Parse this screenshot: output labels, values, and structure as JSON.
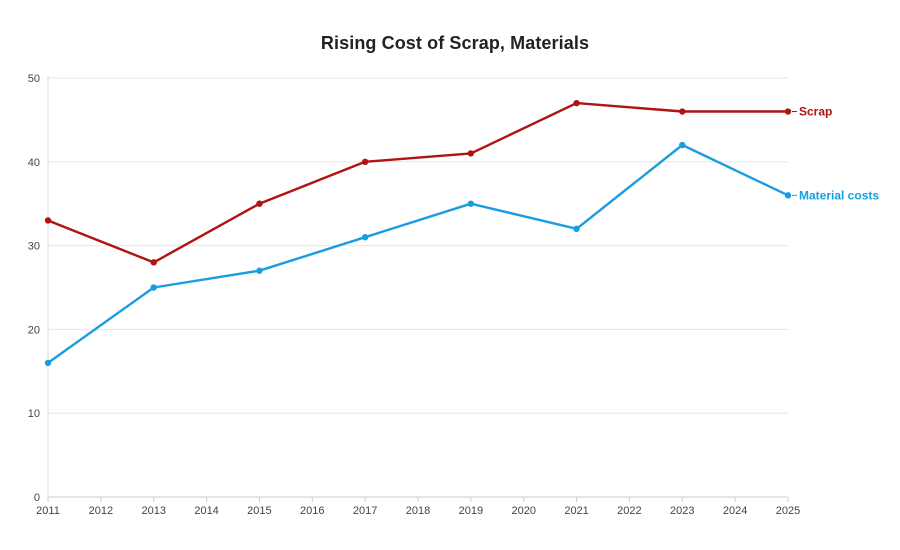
{
  "chart_data": {
    "type": "line",
    "title": "Rising Cost of Scrap, Materials",
    "xlabel": "",
    "ylabel": "",
    "x": [
      2011,
      2013,
      2015,
      2017,
      2019,
      2021,
      2023,
      2025
    ],
    "x_ticks": [
      "2011",
      "2012",
      "2013",
      "2014",
      "2015",
      "2016",
      "2017",
      "2018",
      "2019",
      "2020",
      "2021",
      "2022",
      "2023",
      "2024",
      "2025"
    ],
    "xlim": [
      2011,
      2025
    ],
    "y_ticks": [
      "0",
      "10",
      "20",
      "30",
      "40",
      "50"
    ],
    "ylim": [
      0,
      50
    ],
    "grid": true,
    "legend": "direct-labels-right",
    "series": [
      {
        "name": "Scrap",
        "color": "#b11212",
        "values": [
          33,
          28,
          35,
          40,
          41,
          47,
          46,
          46
        ]
      },
      {
        "name": "Material costs",
        "color": "#1a9de0",
        "values": [
          16,
          25,
          27,
          31,
          35,
          32,
          42,
          36
        ]
      }
    ]
  }
}
